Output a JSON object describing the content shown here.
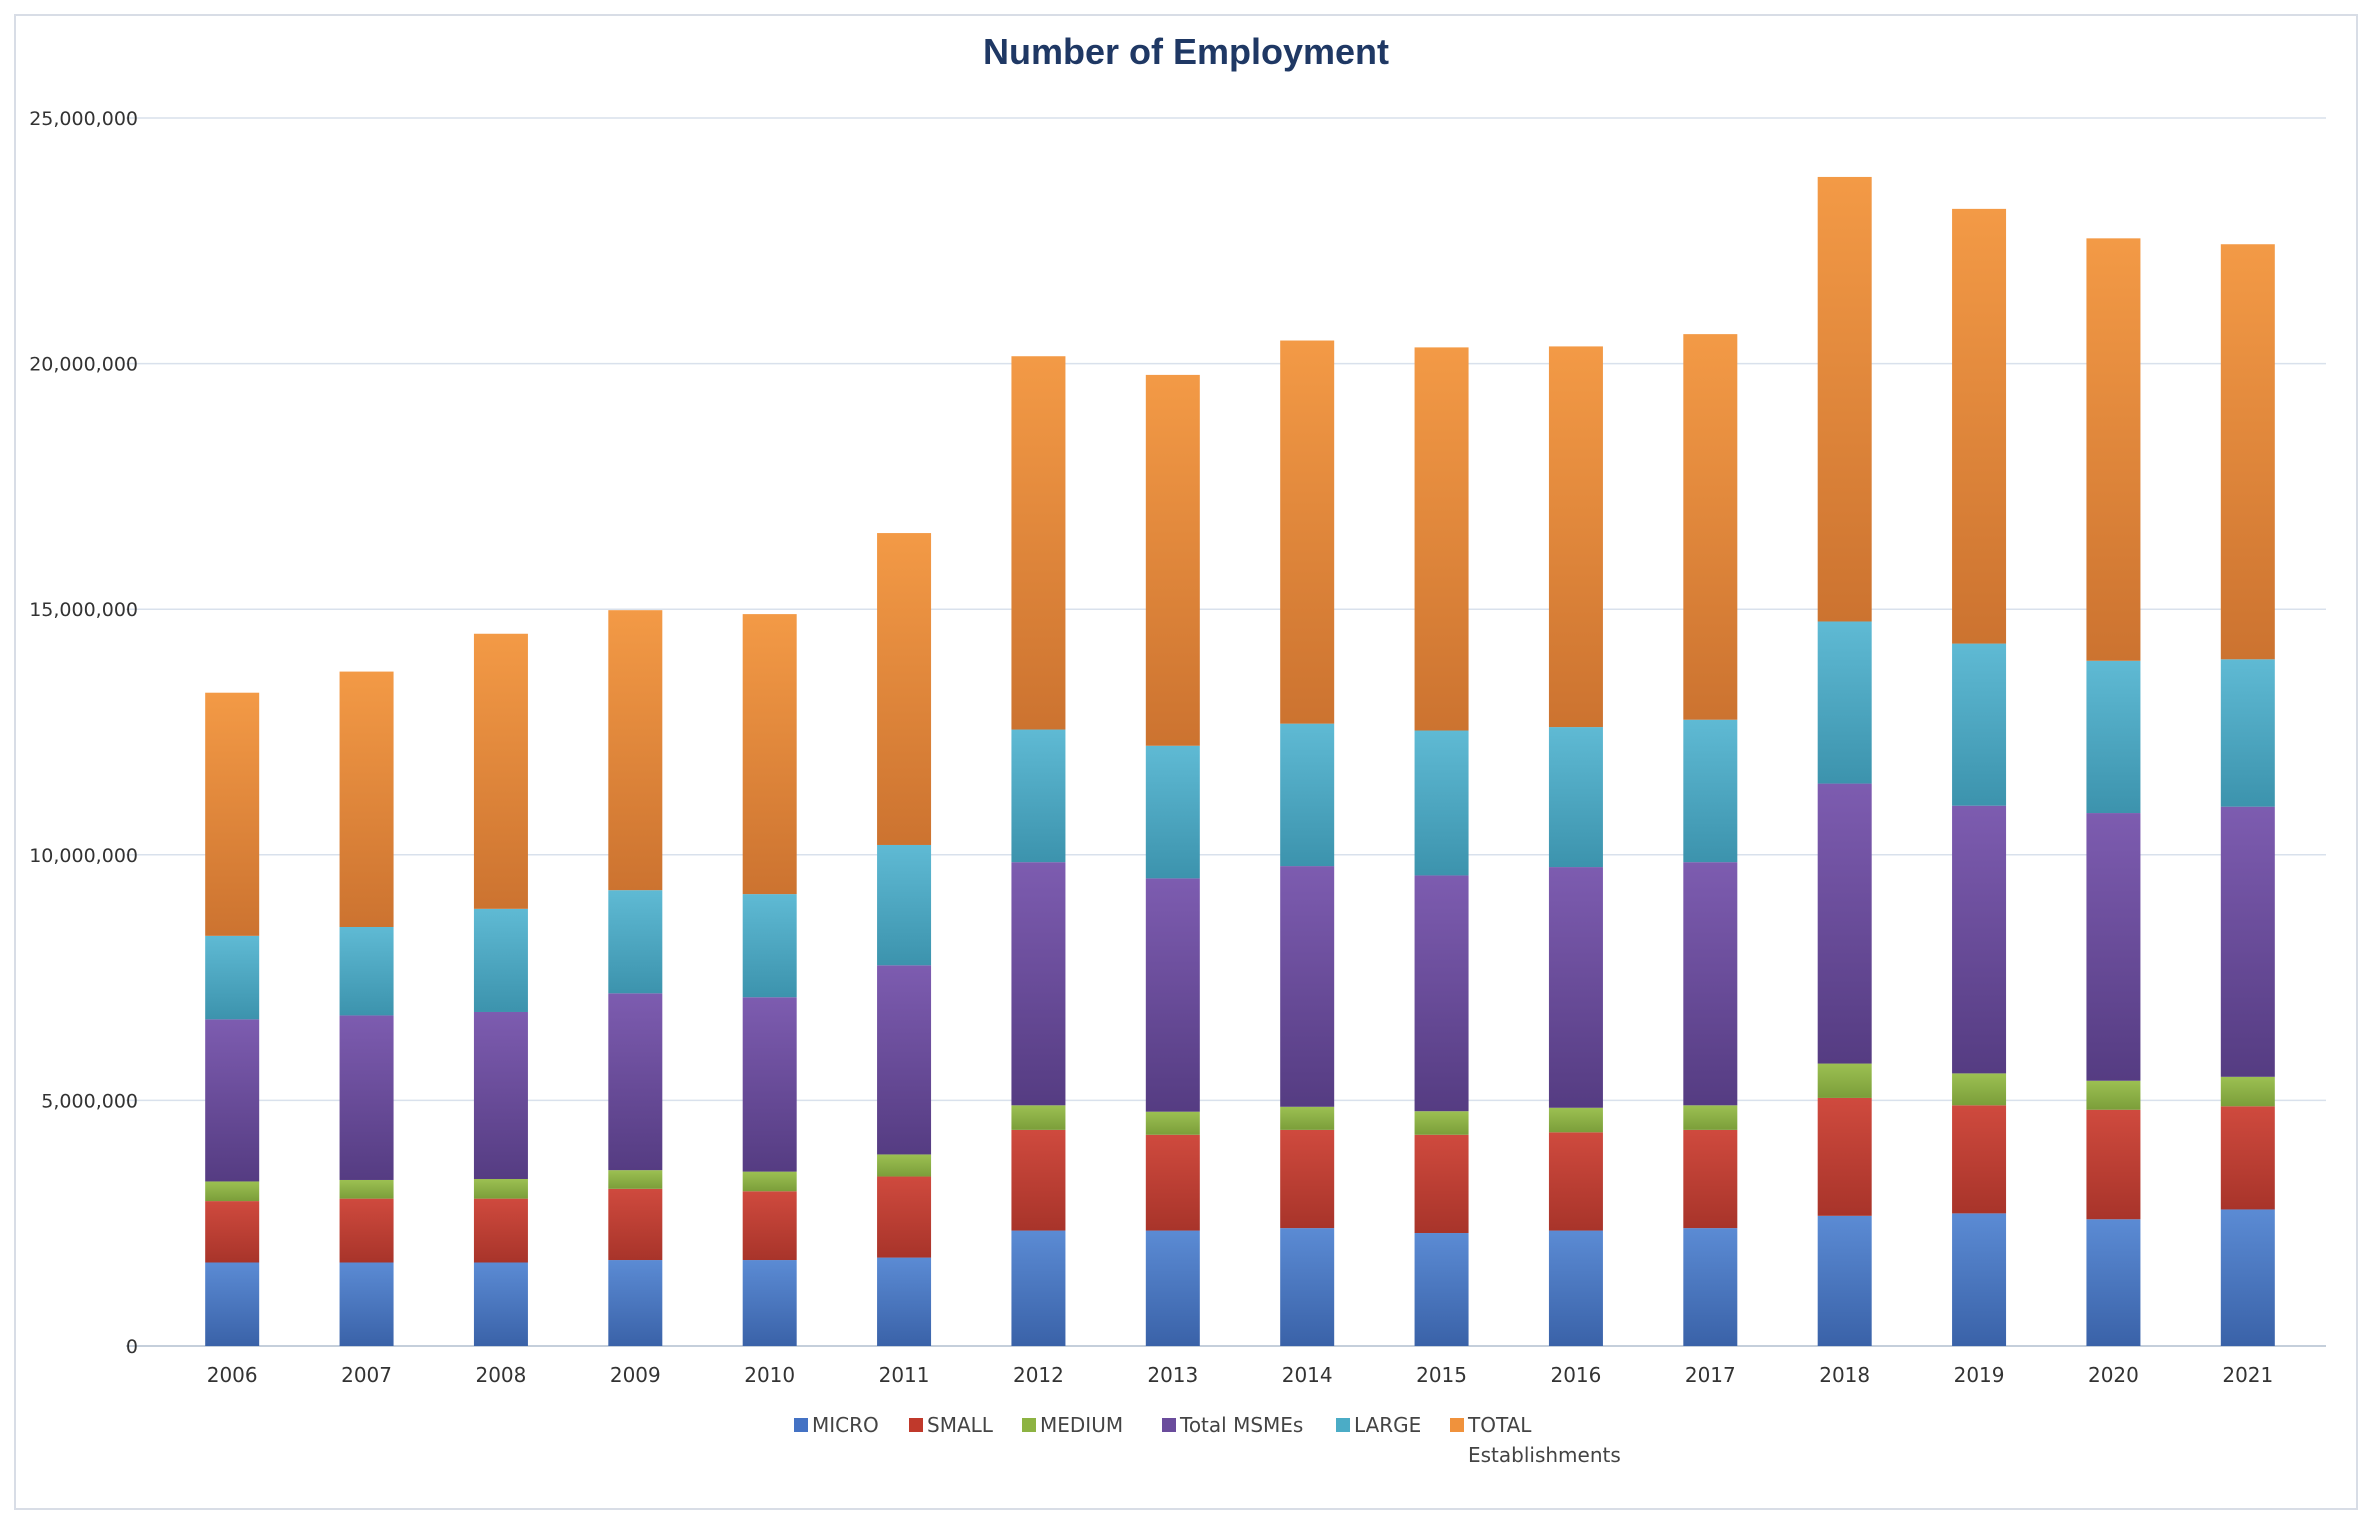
{
  "chart_data": {
    "type": "bar",
    "stacked": true,
    "title": "Number of Employment",
    "xlabel": "",
    "ylabel": "",
    "ylim": [
      0,
      25000000
    ],
    "yticks": [
      0,
      5000000,
      10000000,
      15000000,
      20000000,
      25000000
    ],
    "ytick_labels": [
      "0",
      "5,000,000",
      "10,000,000",
      "15,000,000",
      "20,000,000",
      "25,000,000"
    ],
    "grid": true,
    "legend_position": "bottom",
    "categories": [
      "2006",
      "2007",
      "2008",
      "2009",
      "2010",
      "2011",
      "2012",
      "2013",
      "2014",
      "2015",
      "2016",
      "2017",
      "2018",
      "2019",
      "2020",
      "2021"
    ],
    "series": [
      {
        "name": "MICRO",
        "legend_lines": [
          "MICRO"
        ],
        "color": "#4472c4",
        "values": [
          1700000,
          1700000,
          1700000,
          1750000,
          1750000,
          1800000,
          2350000,
          2350000,
          2400000,
          2300000,
          2350000,
          2400000,
          2650000,
          2700000,
          2580000,
          2780000
        ]
      },
      {
        "name": "SMALL",
        "legend_lines": [
          "SMALL"
        ],
        "color": "#c0392b",
        "values": [
          1250000,
          1300000,
          1300000,
          1450000,
          1400000,
          1650000,
          2050000,
          1950000,
          2000000,
          2000000,
          2000000,
          2000000,
          2400000,
          2200000,
          2230000,
          2100000
        ]
      },
      {
        "name": "MEDIUM",
        "legend_lines": [
          "MEDIUM"
        ],
        "color": "#8db342",
        "values": [
          400000,
          380000,
          400000,
          380000,
          400000,
          450000,
          500000,
          470000,
          470000,
          480000,
          500000,
          500000,
          700000,
          650000,
          590000,
          600000
        ]
      },
      {
        "name": "Total MSMEs",
        "legend_lines": [
          "Total MSMEs"
        ],
        "color": "#6a4c9c",
        "values": [
          3300000,
          3350000,
          3400000,
          3600000,
          3550000,
          3850000,
          4950000,
          4750000,
          4900000,
          4800000,
          4900000,
          4950000,
          5700000,
          5450000,
          5450000,
          5500000
        ]
      },
      {
        "name": "LARGE",
        "legend_lines": [
          "LARGE"
        ],
        "color": "#4bacc6",
        "values": [
          1700000,
          1800000,
          2100000,
          2100000,
          2100000,
          2450000,
          2700000,
          2700000,
          2900000,
          2950000,
          2850000,
          2900000,
          3300000,
          3300000,
          3100000,
          3000000
        ]
      },
      {
        "name": "TOTAL Establishments",
        "legend_lines": [
          "TOTAL",
          "Establishments"
        ],
        "color": "#f0923c",
        "values": [
          4950000,
          5200000,
          5600000,
          5700000,
          5700000,
          6350000,
          7600000,
          7550000,
          7800000,
          7800000,
          7750000,
          7850000,
          9050000,
          8850000,
          8600000,
          8450000
        ]
      }
    ]
  }
}
